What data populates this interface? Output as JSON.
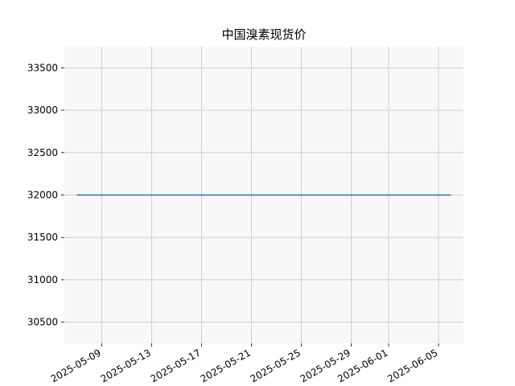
{
  "chart_data": {
    "type": "line",
    "title": "中国溴素现货价",
    "xlabel": "",
    "ylabel": "",
    "x_ticks": [
      "2025-05-09",
      "2025-05-13",
      "2025-05-17",
      "2025-05-21",
      "2025-05-25",
      "2025-05-29",
      "2025-06-01",
      "2025-06-05"
    ],
    "y_ticks": [
      30500,
      31000,
      31500,
      32000,
      32500,
      33000,
      33500
    ],
    "xlim": [
      "2025-05-06",
      "2025-06-07"
    ],
    "ylim": [
      30250,
      33750
    ],
    "grid": true,
    "legend": "none",
    "colors": {
      "line": "#1f77b4",
      "plot_bg": "#f8f8f8",
      "grid": "#d0d0d0"
    },
    "series": [
      {
        "x": [
          "2025-05-07",
          "2025-06-06"
        ],
        "values": [
          32000,
          32000
        ]
      }
    ]
  }
}
